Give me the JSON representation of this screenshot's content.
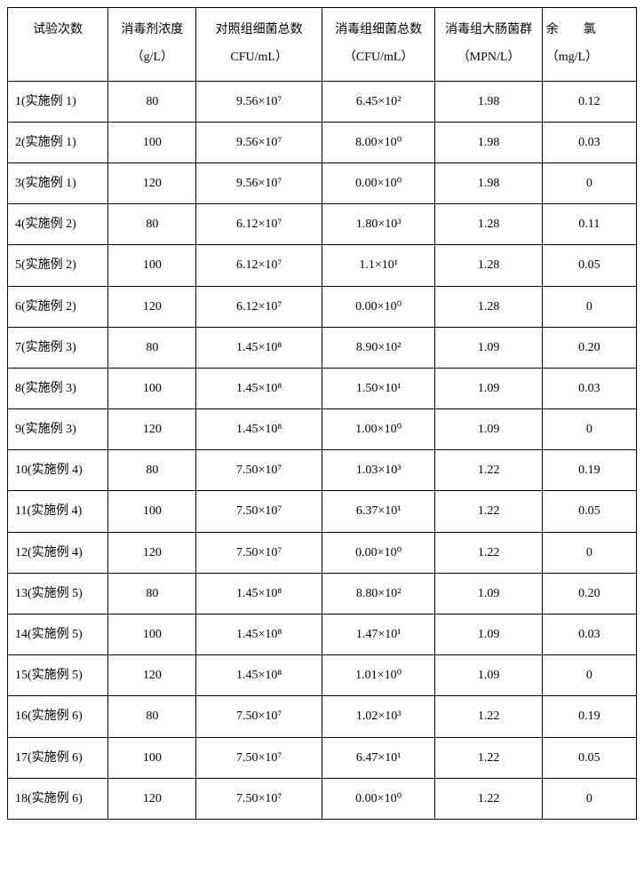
{
  "table": {
    "columns": [
      "试验次数",
      "消毒剂浓度（g/L）",
      "对照组细菌总数　CFU/mL）",
      "消毒组细菌总数（CFU/mL）",
      "消毒组大肠菌群（MPN/L）",
      "余　　氯（mg/L）"
    ],
    "col_cl_top": "余　　氯",
    "col_cl_bottom": "（mg/L）",
    "rows": [
      {
        "trial": "1(实施例 1)",
        "conc": "80",
        "ctrl": "9.56×10⁷",
        "dis": "6.45×10²",
        "coli": "1.98",
        "cl": "0.12"
      },
      {
        "trial": "2(实施例 1)",
        "conc": "100",
        "ctrl": "9.56×10⁷",
        "dis": "8.00×10⁰",
        "coli": "1.98",
        "cl": "0.03"
      },
      {
        "trial": "3(实施例 1)",
        "conc": "120",
        "ctrl": "9.56×10⁷",
        "dis": "0.00×10⁰",
        "coli": "1.98",
        "cl": "0"
      },
      {
        "trial": "4(实施例 2)",
        "conc": "80",
        "ctrl": "6.12×10⁷",
        "dis": "1.80×10³",
        "coli": "1.28",
        "cl": "0.11"
      },
      {
        "trial": "5(实施例 2)",
        "conc": "100",
        "ctrl": "6.12×10⁷",
        "dis": "1.1×10¹",
        "coli": "1.28",
        "cl": "0.05"
      },
      {
        "trial": "6(实施例 2)",
        "conc": "120",
        "ctrl": "6.12×10⁷",
        "dis": "0.00×10⁰",
        "coli": "1.28",
        "cl": "0"
      },
      {
        "trial": "7(实施例 3)",
        "conc": "80",
        "ctrl": "1.45×10⁸",
        "dis": "8.90×10²",
        "coli": "1.09",
        "cl": "0.20"
      },
      {
        "trial": "8(实施例 3)",
        "conc": "100",
        "ctrl": "1.45×10⁸",
        "dis": "1.50×10¹",
        "coli": "1.09",
        "cl": "0.03"
      },
      {
        "trial": "9(实施例 3)",
        "conc": "120",
        "ctrl": "1.45×10⁸",
        "dis": "1.00×10⁰",
        "coli": "1.09",
        "cl": "0"
      },
      {
        "trial": "10(实施例 4)",
        "conc": "80",
        "ctrl": "7.50×10⁷",
        "dis": "1.03×10³",
        "coli": "1.22",
        "cl": "0.19"
      },
      {
        "trial": "11(实施例 4)",
        "conc": "100",
        "ctrl": "7.50×10⁷",
        "dis": "6.37×10¹",
        "coli": "1.22",
        "cl": "0.05"
      },
      {
        "trial": "12(实施例 4)",
        "conc": "120",
        "ctrl": "7.50×10⁷",
        "dis": "0.00×10⁰",
        "coli": "1.22",
        "cl": "0"
      },
      {
        "trial": "13(实施例 5)",
        "conc": "80",
        "ctrl": "1.45×10⁸",
        "dis": "8.80×10²",
        "coli": "1.09",
        "cl": "0.20"
      },
      {
        "trial": "14(实施例 5)",
        "conc": "100",
        "ctrl": "1.45×10⁸",
        "dis": "1.47×10¹",
        "coli": "1.09",
        "cl": "0.03"
      },
      {
        "trial": "15(实施例 5)",
        "conc": "120",
        "ctrl": "1.45×10⁸",
        "dis": "1.01×10⁰",
        "coli": "1.09",
        "cl": "0"
      },
      {
        "trial": "16(实施例 6)",
        "conc": "80",
        "ctrl": "7.50×10⁷",
        "dis": "1.02×10³",
        "coli": "1.22",
        "cl": "0.19"
      },
      {
        "trial": "17(实施例 6)",
        "conc": "100",
        "ctrl": "7.50×10⁷",
        "dis": "6.47×10¹",
        "coli": "1.22",
        "cl": "0.05"
      },
      {
        "trial": "18(实施例 6)",
        "conc": "120",
        "ctrl": "7.50×10⁷",
        "dis": "0.00×10⁰",
        "coli": "1.22",
        "cl": "0"
      }
    ],
    "background_color": "#ffffff",
    "border_color": "#000000",
    "font_size": 14,
    "header_line_height": 2.2
  }
}
